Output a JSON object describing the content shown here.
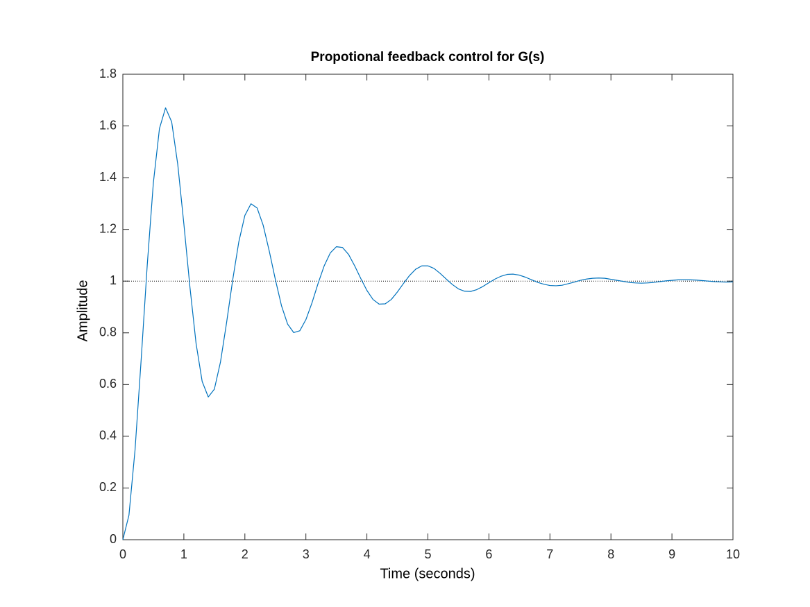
{
  "chart_data": {
    "type": "line",
    "title": "Propotional feedback control for G(s)",
    "x_label": "Time (seconds)",
    "y_label": "Amplitude",
    "x": [
      0,
      0.1,
      0.2,
      0.3,
      0.4,
      0.5,
      0.6,
      0.7,
      0.8,
      0.9,
      1,
      1.1,
      1.2,
      1.3,
      1.4,
      1.5,
      1.6,
      1.7,
      1.8,
      1.9,
      2,
      2.1,
      2.2,
      2.3,
      2.4,
      2.5,
      2.6,
      2.7,
      2.8,
      2.9,
      3,
      3.1,
      3.2,
      3.3,
      3.4,
      3.5,
      3.6,
      3.7,
      3.8,
      3.9,
      4,
      4.1,
      4.2,
      4.3,
      4.4,
      4.5,
      4.6,
      4.7,
      4.8,
      4.9,
      5,
      5.1,
      5.2,
      5.3,
      5.4,
      5.5,
      5.6,
      5.7,
      5.8,
      5.9,
      6,
      6.1,
      6.2,
      6.3,
      6.4,
      6.5,
      6.6,
      6.7,
      6.8,
      6.9,
      7,
      7.1,
      7.2,
      7.3,
      7.4,
      7.5,
      7.6,
      7.7,
      7.8,
      7.9,
      8,
      8.1,
      8.2,
      8.3,
      8.4,
      8.5,
      8.6,
      8.7,
      8.8,
      8.9,
      9,
      9.1,
      9.2,
      9.3,
      9.4,
      9.5,
      9.6,
      9.7,
      9.8,
      9.9,
      10
    ],
    "series": [
      {
        "color": "#0072bd",
        "values": [
          0,
          0.095,
          0.348,
          0.696,
          1.063,
          1.38,
          1.59,
          1.67,
          1.616,
          1.451,
          1.221,
          0.976,
          0.759,
          0.612,
          0.552,
          0.582,
          0.687,
          0.839,
          1.004,
          1.151,
          1.254,
          1.299,
          1.283,
          1.216,
          1.116,
          1.006,
          0.905,
          0.834,
          0.801,
          0.808,
          0.851,
          0.916,
          0.991,
          1.059,
          1.109,
          1.133,
          1.13,
          1.103,
          1.059,
          1.01,
          0.964,
          0.929,
          0.911,
          0.912,
          0.929,
          0.958,
          0.991,
          1.022,
          1.046,
          1.059,
          1.059,
          1.049,
          1.03,
          1.008,
          0.987,
          0.97,
          0.961,
          0.96,
          0.967,
          0.979,
          0.994,
          1.008,
          1.019,
          1.026,
          1.027,
          1.023,
          1.015,
          1.005,
          0.995,
          0.988,
          0.983,
          0.982,
          0.984,
          0.99,
          0.996,
          1.003,
          1.008,
          1.011,
          1.012,
          1.011,
          1.007,
          1.003,
          0.999,
          0.995,
          0.993,
          0.992,
          0.993,
          0.995,
          0.998,
          1.001,
          1.003,
          1.005,
          1.005,
          1.005,
          1.004,
          1.002,
          1,
          0.998,
          0.997,
          0.996,
          0.997
        ]
      }
    ],
    "steady_state": 1,
    "xlim": [
      0,
      10
    ],
    "xticks": [
      0,
      1,
      2,
      3,
      4,
      5,
      6,
      7,
      8,
      9,
      10
    ],
    "ylim": [
      0,
      1.8
    ],
    "yticks": [
      0,
      0.2,
      0.4,
      0.6,
      0.8,
      1,
      1.2,
      1.4,
      1.6,
      1.8
    ],
    "grid": false
  }
}
